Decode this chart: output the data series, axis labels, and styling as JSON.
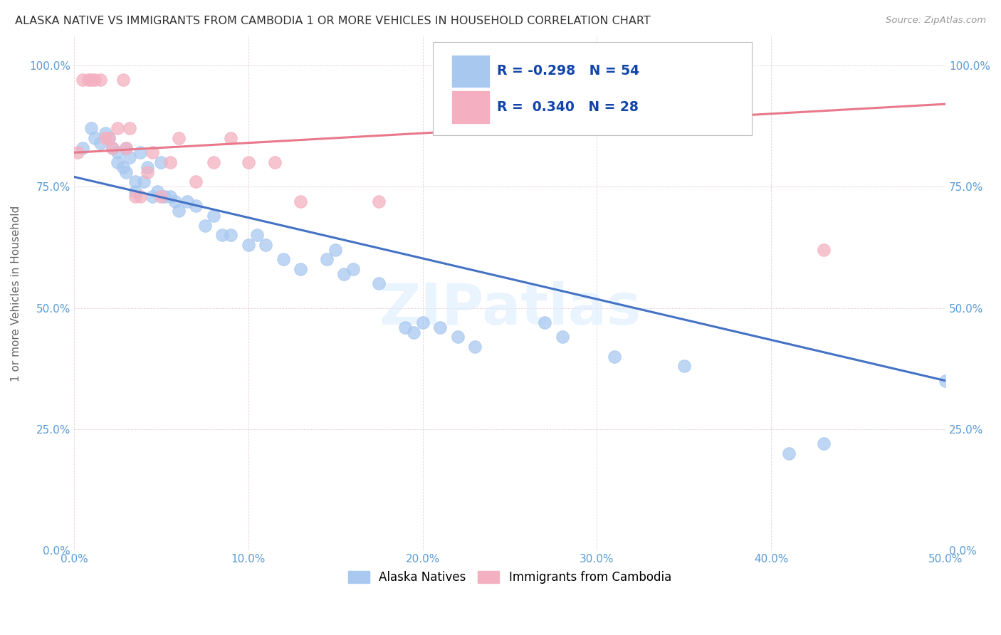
{
  "title": "ALASKA NATIVE VS IMMIGRANTS FROM CAMBODIA 1 OR MORE VEHICLES IN HOUSEHOLD CORRELATION CHART",
  "source": "Source: ZipAtlas.com",
  "xlabel_ticks": [
    "0.0%",
    "10.0%",
    "20.0%",
    "30.0%",
    "40.0%",
    "50.0%"
  ],
  "xlabel_vals": [
    0.0,
    0.1,
    0.2,
    0.3,
    0.4,
    0.5
  ],
  "ylabel": "1 or more Vehicles in Household",
  "ylabel_ticks": [
    "0.0%",
    "25.0%",
    "50.0%",
    "75.0%",
    "100.0%"
  ],
  "ylabel_vals": [
    0.0,
    0.25,
    0.5,
    0.75,
    1.0
  ],
  "xlim": [
    0.0,
    0.5
  ],
  "ylim": [
    0.0,
    1.06
  ],
  "legend_label1": "Alaska Natives",
  "legend_label2": "Immigrants from Cambodia",
  "R1": -0.298,
  "N1": 54,
  "R2": 0.34,
  "N2": 28,
  "blue_color": "#A8C8F0",
  "pink_color": "#F4B0C0",
  "blue_line_color": "#4472C4",
  "pink_line_color": "#E8788A",
  "watermark": "ZIPatlas",
  "blue_scatter_x": [
    0.005,
    0.01,
    0.012,
    0.015,
    0.018,
    0.02,
    0.022,
    0.025,
    0.025,
    0.028,
    0.03,
    0.03,
    0.032,
    0.035,
    0.035,
    0.038,
    0.04,
    0.042,
    0.045,
    0.048,
    0.05,
    0.052,
    0.055,
    0.058,
    0.06,
    0.065,
    0.07,
    0.075,
    0.08,
    0.085,
    0.09,
    0.1,
    0.105,
    0.11,
    0.12,
    0.13,
    0.145,
    0.15,
    0.155,
    0.16,
    0.175,
    0.19,
    0.195,
    0.2,
    0.21,
    0.22,
    0.23,
    0.27,
    0.28,
    0.31,
    0.35,
    0.41,
    0.43,
    0.5
  ],
  "blue_scatter_y": [
    0.83,
    0.87,
    0.85,
    0.84,
    0.86,
    0.85,
    0.83,
    0.8,
    0.82,
    0.79,
    0.83,
    0.78,
    0.81,
    0.76,
    0.74,
    0.82,
    0.76,
    0.79,
    0.73,
    0.74,
    0.8,
    0.73,
    0.73,
    0.72,
    0.7,
    0.72,
    0.71,
    0.67,
    0.69,
    0.65,
    0.65,
    0.63,
    0.65,
    0.63,
    0.6,
    0.58,
    0.6,
    0.62,
    0.57,
    0.58,
    0.55,
    0.46,
    0.45,
    0.47,
    0.46,
    0.44,
    0.42,
    0.47,
    0.44,
    0.4,
    0.38,
    0.2,
    0.22,
    0.35
  ],
  "pink_scatter_x": [
    0.002,
    0.005,
    0.008,
    0.01,
    0.012,
    0.015,
    0.018,
    0.02,
    0.022,
    0.025,
    0.028,
    0.03,
    0.032,
    0.035,
    0.038,
    0.042,
    0.045,
    0.05,
    0.055,
    0.06,
    0.07,
    0.08,
    0.09,
    0.1,
    0.115,
    0.13,
    0.175,
    0.43
  ],
  "pink_scatter_y": [
    0.82,
    0.97,
    0.97,
    0.97,
    0.97,
    0.97,
    0.85,
    0.85,
    0.83,
    0.87,
    0.97,
    0.83,
    0.87,
    0.73,
    0.73,
    0.78,
    0.82,
    0.73,
    0.8,
    0.85,
    0.76,
    0.8,
    0.85,
    0.8,
    0.8,
    0.72,
    0.72,
    0.62
  ],
  "blue_line_x0": 0.0,
  "blue_line_y0": 0.77,
  "blue_line_x1": 0.5,
  "blue_line_y1": 0.35,
  "pink_line_x0": 0.0,
  "pink_line_y0": 0.82,
  "pink_line_x1": 0.5,
  "pink_line_y1": 0.92
}
